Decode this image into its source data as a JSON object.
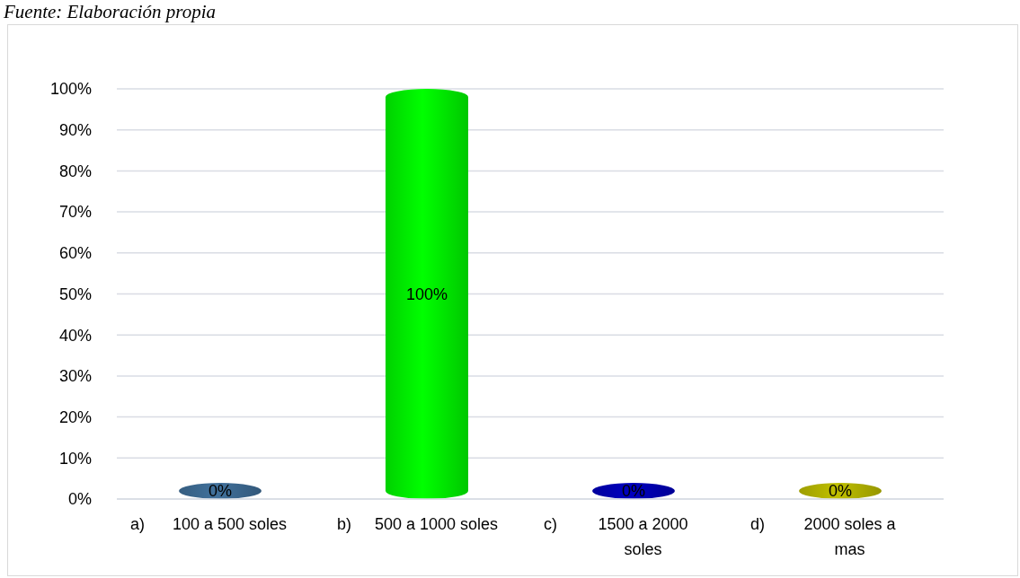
{
  "chart_data": {
    "type": "bar",
    "annotations": [
      "Fuente: Elaboración propia"
    ],
    "categories": [
      "a) 100 a 500 soles",
      "b) 500 a 1000 soles",
      "c) 1500 a 2000 soles",
      "d) 2000 soles a mas"
    ],
    "values": [
      0,
      100,
      0,
      0
    ],
    "colors": [
      "#41719c",
      "#00ff00",
      "#0000c0",
      "#c0c000"
    ],
    "value_labels": [
      "0%",
      "100%",
      "0%",
      "0%"
    ],
    "ylim": [
      0,
      100
    ],
    "yticks": [
      {
        "value": 0,
        "label": "0%"
      },
      {
        "value": 10,
        "label": "10%"
      },
      {
        "value": 20,
        "label": "20%"
      },
      {
        "value": 30,
        "label": "30%"
      },
      {
        "value": 40,
        "label": "40%"
      },
      {
        "value": 50,
        "label": "50%"
      },
      {
        "value": 60,
        "label": "60%"
      },
      {
        "value": 70,
        "label": "70%"
      },
      {
        "value": 80,
        "label": "80%"
      },
      {
        "value": 90,
        "label": "90%"
      },
      {
        "value": 100,
        "label": "100%"
      }
    ],
    "grid": "y"
  }
}
